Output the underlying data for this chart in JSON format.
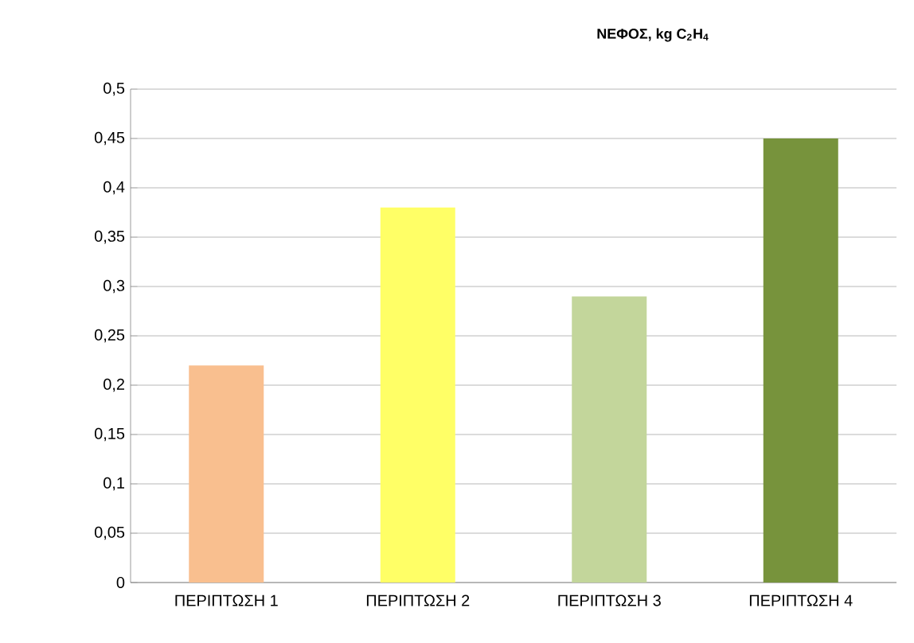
{
  "chart_data": {
    "type": "bar",
    "title": "ΝΕΦΟΣ, kg C$_{2}$H$_{4}$",
    "categories": [
      "ΠΕΡΙΠΤΩΣΗ 1",
      "ΠΕΡΙΠΤΩΣΗ 2",
      "ΠΕΡΙΠΤΩΣΗ 3",
      "ΠΕΡΙΠΤΩΣΗ 4"
    ],
    "values": [
      0.22,
      0.38,
      0.29,
      0.45
    ],
    "colors": [
      "#f9bf8f",
      "#ffff66",
      "#c3d69b",
      "#77933c"
    ],
    "ylim": [
      0,
      0.5
    ],
    "yticks": [
      0,
      {
        "value": 0.05,
        "label": "0,05"
      },
      {
        "value": 0.1,
        "label": "0,1"
      },
      {
        "value": 0.15,
        "label": "0,15"
      },
      {
        "value": 0.2,
        "label": "0,2"
      },
      {
        "value": 0.25,
        "label": "0,25"
      },
      {
        "value": 0.3,
        "label": "0,3"
      },
      {
        "value": 0.35,
        "label": "0,35"
      },
      {
        "value": 0.4,
        "label": "0,4"
      },
      {
        "value": 0.45,
        "label": "0,45"
      },
      {
        "value": 0.5,
        "label": "0,5"
      }
    ],
    "grid": "y"
  }
}
